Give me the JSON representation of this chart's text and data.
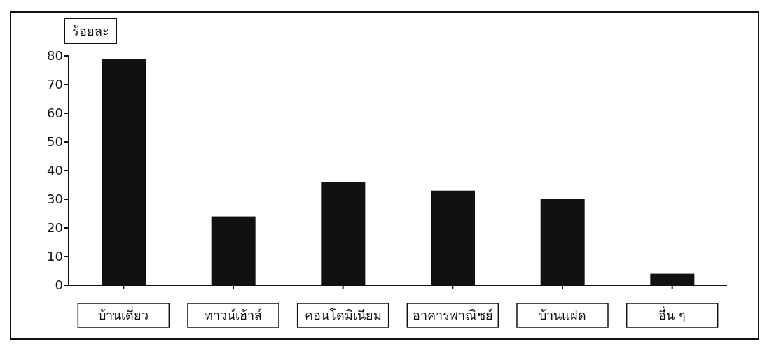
{
  "chart_data": {
    "type": "bar",
    "ylabel": "ร้อยละ",
    "categories": [
      "บ้านเดี่ยว",
      "ทาวน์เฮ้าส์",
      "คอนโดมิเนียม",
      "อาคารพาณิชย์",
      "บ้านแฝด",
      "อื่น ๆ"
    ],
    "values": [
      79,
      24,
      36,
      33,
      30,
      4
    ],
    "color": "#111111",
    "ylim": [
      0,
      80
    ],
    "yticks": [
      0,
      10,
      20,
      30,
      40,
      50,
      60,
      70,
      80
    ],
    "grid": false,
    "legend": false
  }
}
